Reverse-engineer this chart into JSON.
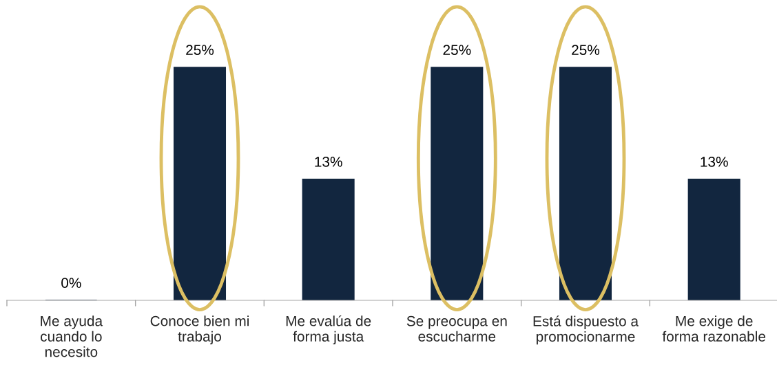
{
  "chart_data": {
    "type": "bar",
    "categories": [
      "Me ayuda\ncuando lo\nnecesito",
      "Conoce bien mi\ntrabajo",
      "Me evalúa de\nforma justa",
      "Se preocupa en\nescucharme",
      "Está dispuesto a\npromocionarme",
      "Me exige de\nforma razonable"
    ],
    "values": [
      0,
      25,
      13,
      25,
      25,
      13
    ],
    "value_labels": [
      "0%",
      "25%",
      "13%",
      "25%",
      "25%",
      "13%"
    ],
    "color": "#12263f",
    "grid": false,
    "legend": false
  }
}
